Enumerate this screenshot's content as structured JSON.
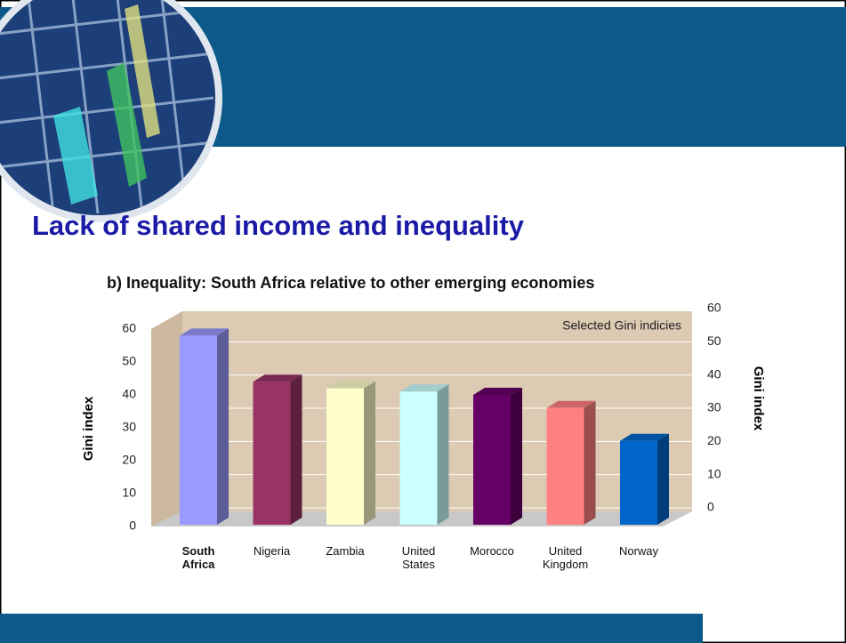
{
  "slide_title": "Lack of shared income and inequality",
  "chart_data": {
    "type": "bar3d",
    "title": "b) Inequality: South Africa relative to other emerging economies",
    "subtitle": "Selected Gini indicies",
    "y_label": "Gini index",
    "y2_label": "Gini index",
    "categories": [
      "South Africa",
      "Nigeria",
      "Zambia",
      "United States",
      "Morocco",
      "United Kingdom",
      "Norway"
    ],
    "values": [
      58,
      44,
      42,
      41,
      40,
      36,
      26
    ],
    "colors": [
      "#9999ff",
      "#993366",
      "#ffffcc",
      "#ccffff",
      "#660066",
      "#ff8080",
      "#0066cc"
    ],
    "ylim": [
      0,
      60
    ],
    "yticks": [
      0,
      10,
      20,
      30,
      40,
      50,
      60
    ],
    "y2lim": [
      0,
      60
    ],
    "y2ticks": [
      0,
      10,
      20,
      30,
      40,
      50,
      60
    ],
    "grid": true
  }
}
